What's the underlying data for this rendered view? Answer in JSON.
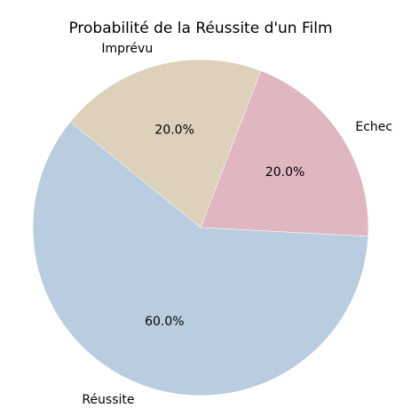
{
  "chart_data": {
    "type": "pie",
    "title": "Probabilité de la Réussite d'un Film",
    "slices": [
      {
        "label": "Echec",
        "value": 20.0,
        "pct_label": "20.0%",
        "color": "#e0b6c0"
      },
      {
        "label": "Imprévu",
        "value": 20.0,
        "pct_label": "20.0%",
        "color": "#ded1bb"
      },
      {
        "label": "Réussite",
        "value": 60.0,
        "pct_label": "60.0%",
        "color": "#bacde0"
      }
    ],
    "start_angle_deg": -3,
    "direction": "counterclockwise"
  }
}
